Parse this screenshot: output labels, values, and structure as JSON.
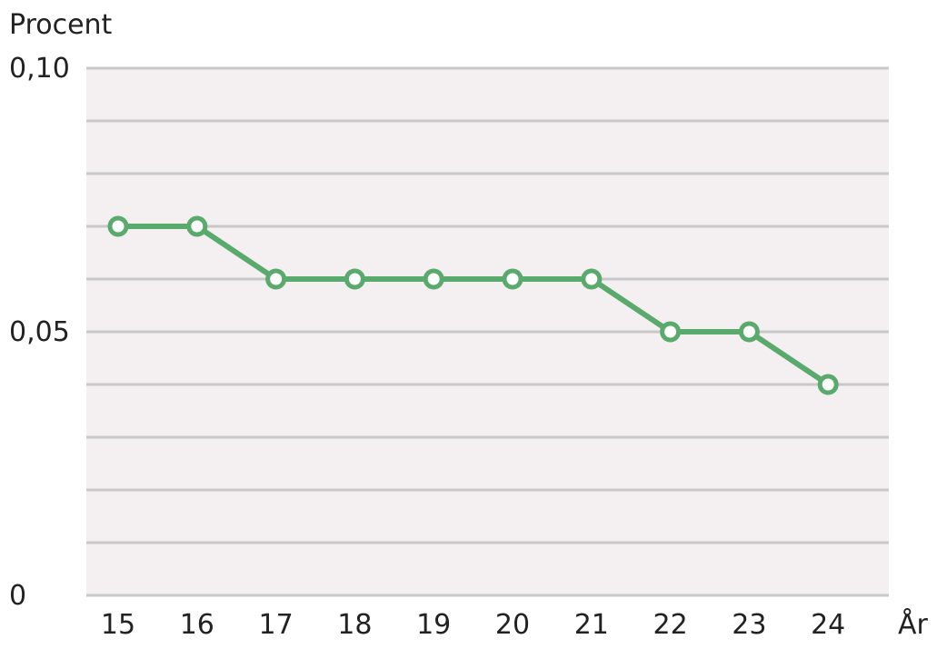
{
  "chart_data": {
    "type": "line",
    "title": "",
    "ylabel": "Procent",
    "xlabel": "År",
    "x": [
      "15",
      "16",
      "17",
      "18",
      "19",
      "20",
      "21",
      "22",
      "23",
      "24"
    ],
    "series": [
      {
        "values": [
          0.07,
          0.07,
          0.06,
          0.06,
          0.06,
          0.06,
          0.06,
          0.05,
          0.05,
          0.04
        ]
      }
    ],
    "ylim": [
      0,
      0.1
    ],
    "y_ticks": [
      {
        "value": 0,
        "label": "0"
      },
      {
        "value": 0.05,
        "label": "0,05"
      },
      {
        "value": 0.1,
        "label": "0,10"
      }
    ],
    "gridlines_step": 0.01,
    "grid": true,
    "colors": {
      "line": "#5aaa6e",
      "plot_background": "#f4eff0",
      "gridline": "#c8c8c8",
      "marker_fill": "#ffffff"
    }
  }
}
